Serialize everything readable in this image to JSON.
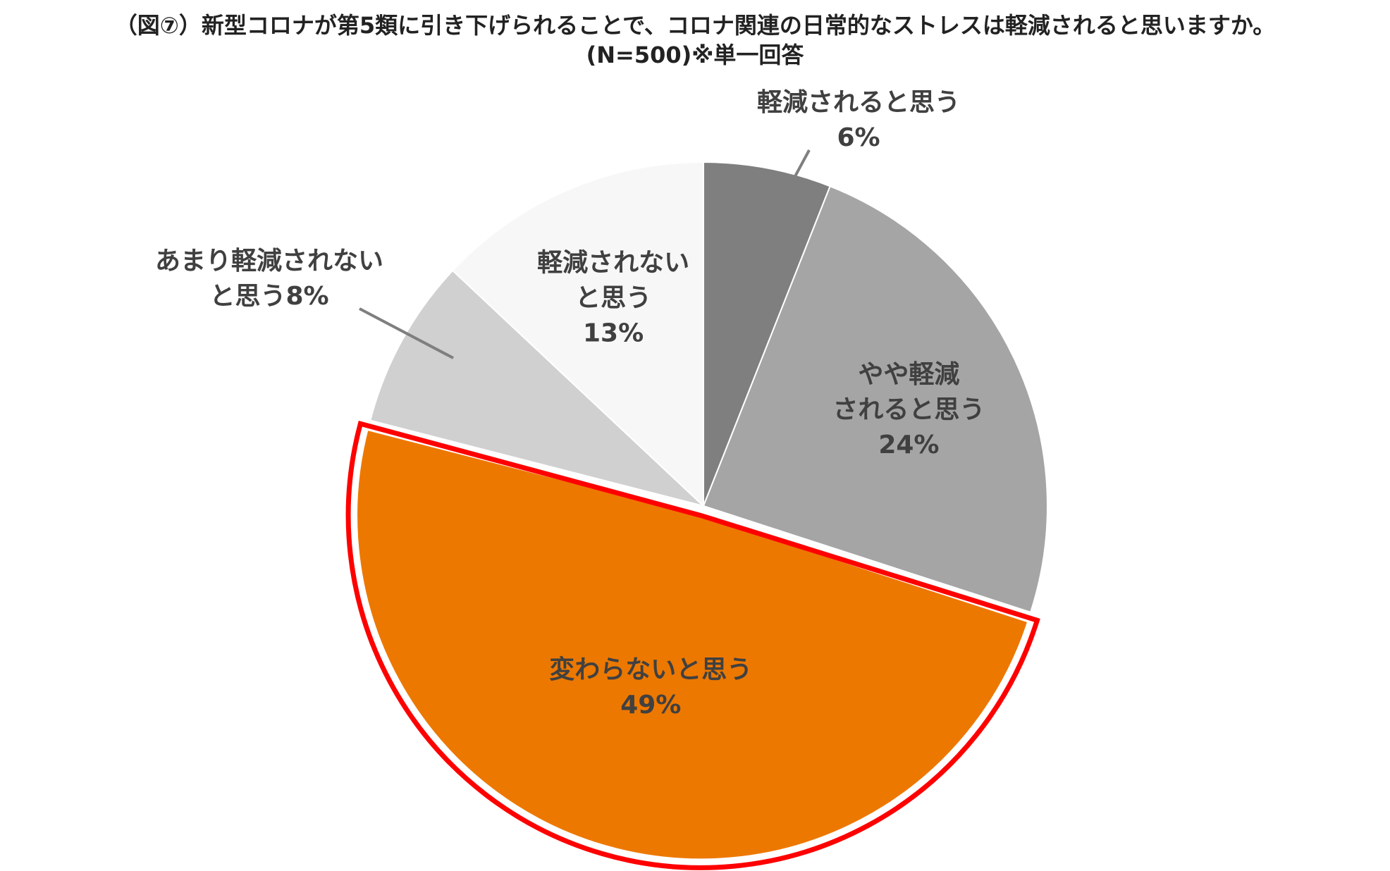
{
  "chart_data": {
    "type": "pie",
    "title": "（図⑦）新型コロナが第5類に引き下げられることで、コロナ関連の日常的なストレスは軽減されると思いますか。",
    "subtitle": "(N=500)※単一回答",
    "start": "12 o'clock",
    "direction": "clockwise",
    "slices": [
      {
        "key": "reduced",
        "label_lines": [
          "軽減されると思う",
          "6%"
        ],
        "value": 6,
        "color": "#7f7f7f",
        "label_position": "outside-top-right",
        "leader_line": true
      },
      {
        "key": "somewhat-reduced",
        "label_lines": [
          "やや軽減",
          "されると思う",
          "24%"
        ],
        "value": 24,
        "color": "#a5a5a5",
        "label_position": "inside"
      },
      {
        "key": "unchanged",
        "label_lines": [
          "変わらないと思う",
          "49%"
        ],
        "value": 49,
        "color": "#ed7800",
        "label_position": "inside",
        "highlighted": true,
        "highlight_color": "#ff0000"
      },
      {
        "key": "not-very-reduced",
        "label_lines": [
          "あまり軽減されない",
          "と思う8%"
        ],
        "value": 8,
        "color": "#d0d0d0",
        "label_position": "outside-left",
        "leader_line": true
      },
      {
        "key": "not-reduced",
        "label_lines": [
          "軽減されない",
          "と思う",
          "13%"
        ],
        "value": 13,
        "color": "#f7f7f7",
        "label_position": "inside"
      }
    ]
  }
}
